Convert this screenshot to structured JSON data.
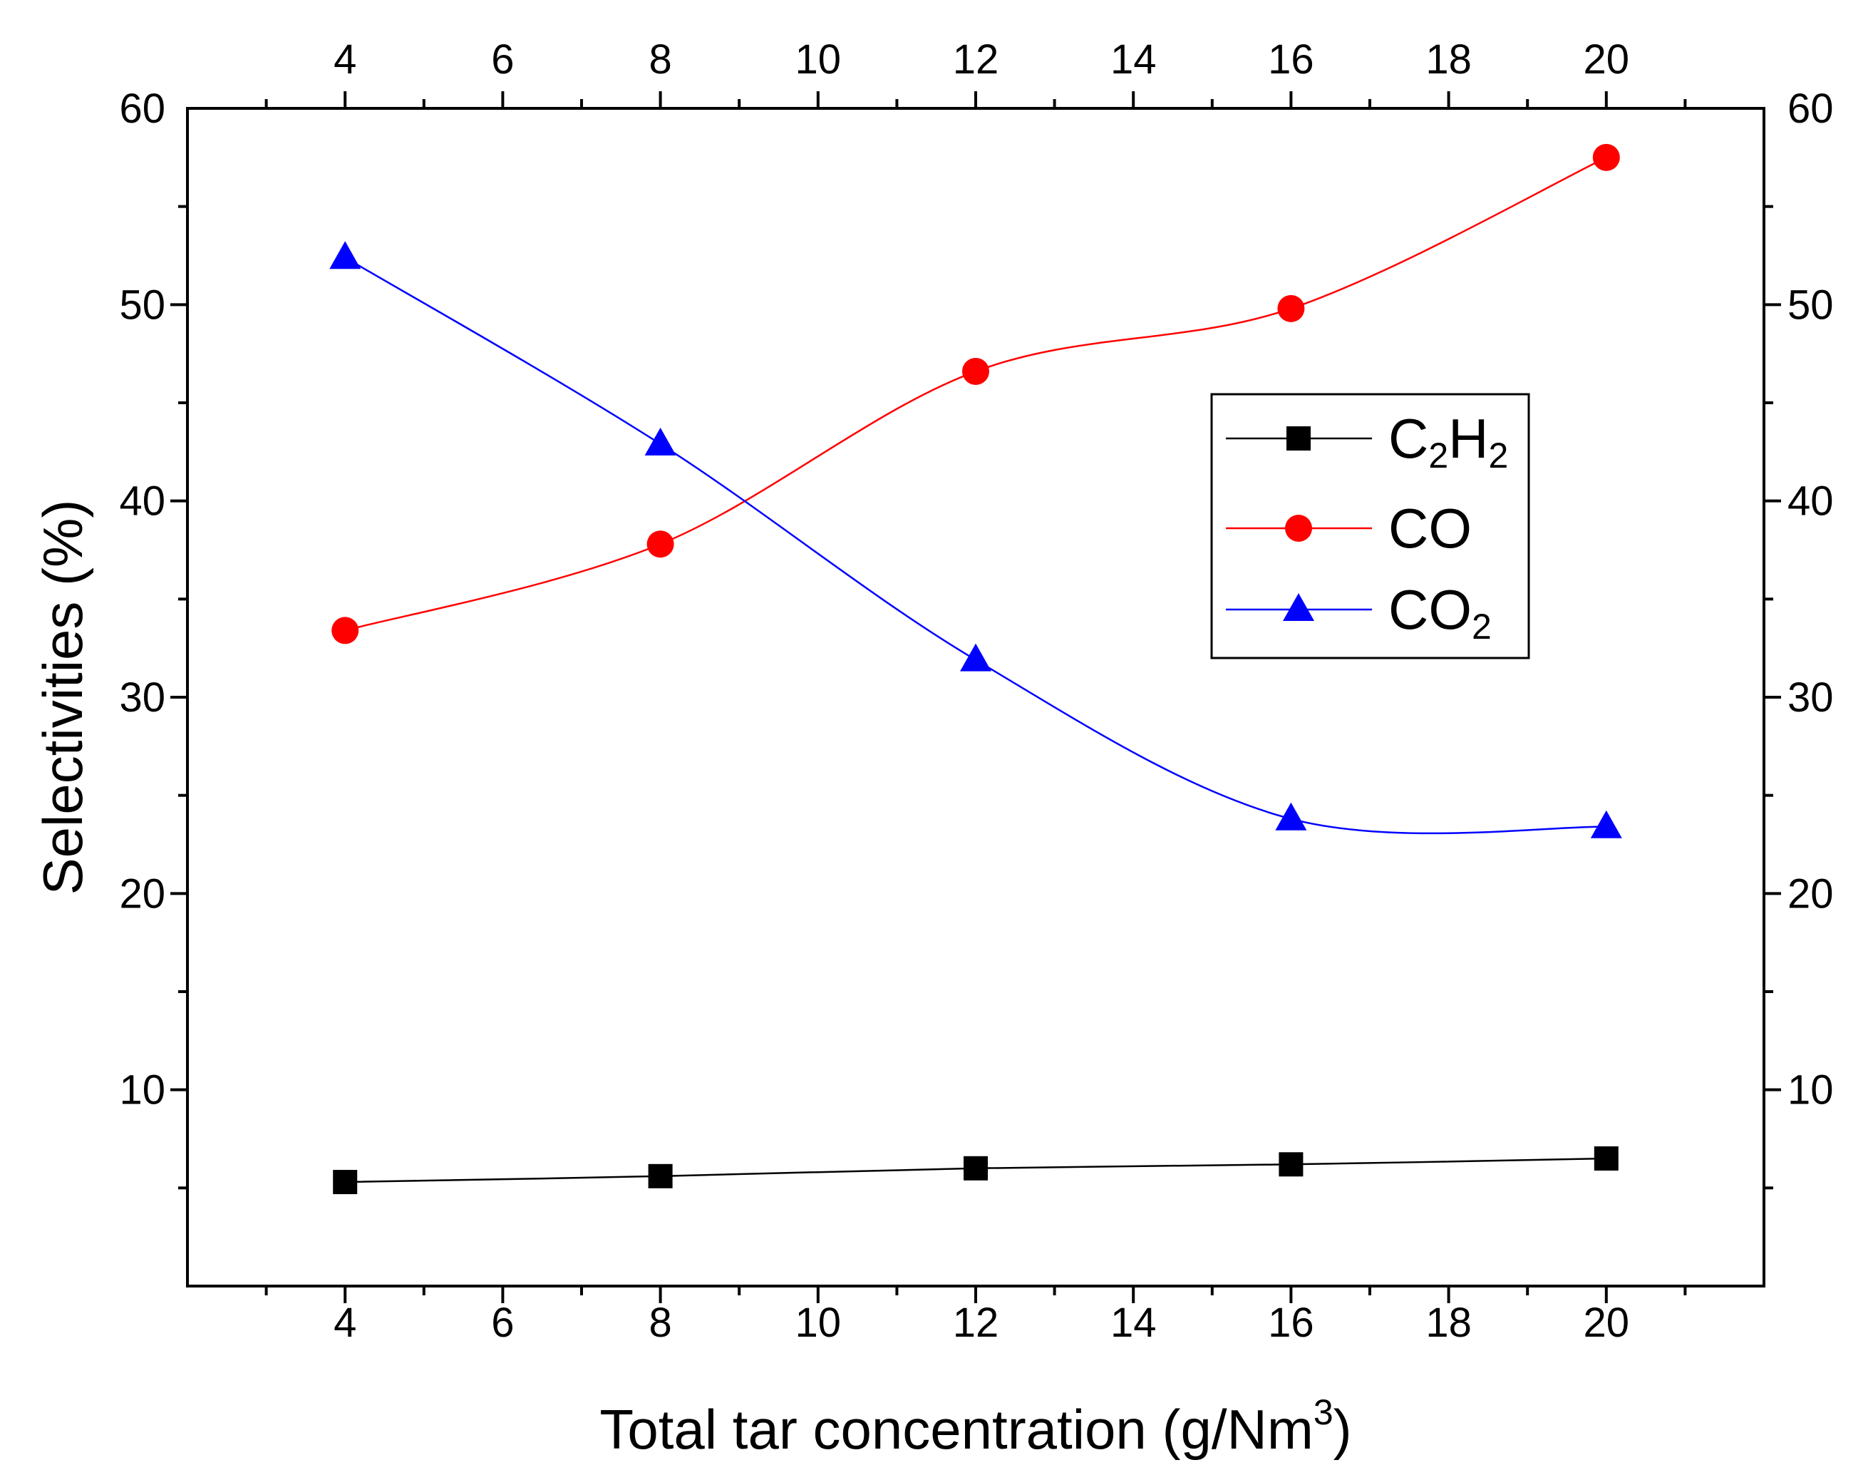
{
  "chart_data": {
    "type": "line",
    "title": "",
    "xlabel": "Total tar concentration (g/Nm",
    "xlabel_sup": "3",
    "xlabel_end": ")",
    "ylabel": "Selectivities (%)",
    "xlim": [
      2,
      22
    ],
    "ylim": [
      0,
      60
    ],
    "x_ticks": [
      4,
      6,
      8,
      10,
      12,
      14,
      16,
      18,
      20
    ],
    "y_ticks": [
      10,
      20,
      30,
      40,
      50,
      60
    ],
    "x": [
      4,
      8,
      12,
      16,
      20
    ],
    "series": [
      {
        "name": "C2H2",
        "label_parts": [
          [
            "C",
            ""
          ],
          [
            "2",
            "sub"
          ],
          [
            "H",
            ""
          ],
          [
            "2",
            "sub"
          ]
        ],
        "values": [
          5.3,
          5.6,
          6.0,
          6.2,
          6.5
        ],
        "color": "#000000",
        "marker": "square"
      },
      {
        "name": "CO",
        "label_parts": [
          [
            "CO",
            ""
          ]
        ],
        "values": [
          33.4,
          37.8,
          46.6,
          49.8,
          57.5
        ],
        "color": "#ff0000",
        "marker": "circle"
      },
      {
        "name": "CO2",
        "label_parts": [
          [
            "CO",
            ""
          ],
          [
            "2",
            "sub"
          ]
        ],
        "values": [
          52.4,
          42.9,
          31.9,
          23.8,
          23.4
        ],
        "color": "#0000ff",
        "marker": "triangle"
      }
    ],
    "legend_position": "right",
    "grid": false
  }
}
